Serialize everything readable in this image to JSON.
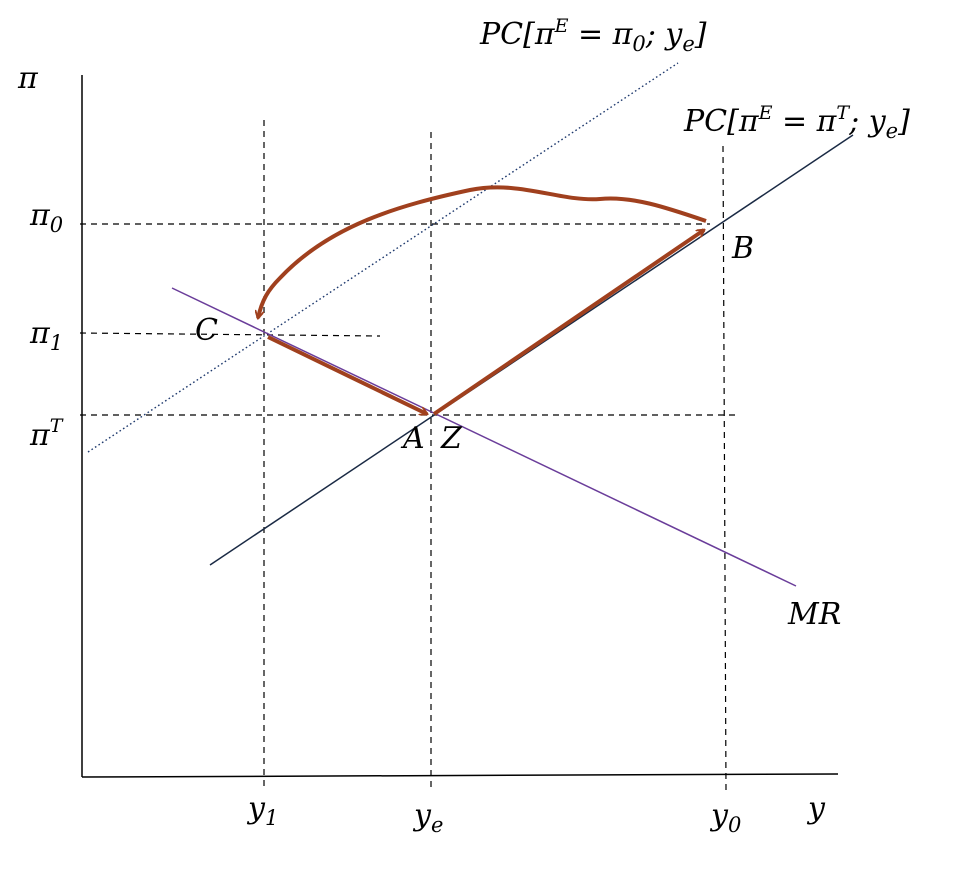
{
  "labels": {
    "y_axis": "π",
    "x_axis": "y",
    "pc_upper": {
      "prefix": "PC[π",
      "sup": "E",
      "mid": " = π",
      "sub1": "0",
      "sep": "; y",
      "sub2": "e",
      "close": "]"
    },
    "pc_lower": {
      "prefix": "PC[π",
      "sup": "E",
      "mid": " = π",
      "sup2": "T",
      "sep": "; y",
      "sub2": "e",
      "close": "]"
    },
    "mr": "MR",
    "pi0": {
      "base": "π",
      "sub": "0"
    },
    "pi1": {
      "base": "π",
      "sub": "1"
    },
    "piT": {
      "base": "π",
      "sup": "T"
    },
    "y1": {
      "base": "y",
      "sub": "1"
    },
    "ye": {
      "base": "y",
      "sub": "e"
    },
    "y0": {
      "base": "y",
      "sub": "0"
    },
    "point_A": "A",
    "point_Z": "Z",
    "point_B": "B",
    "point_C": "C"
  },
  "colors": {
    "axis": "#000000",
    "guide": "#000000",
    "pc_line": "#1a2a44",
    "pc_dotted": "#1f3a6e",
    "mr_line": "#6a3d9a",
    "path_arrow": "#a0401e"
  }
}
